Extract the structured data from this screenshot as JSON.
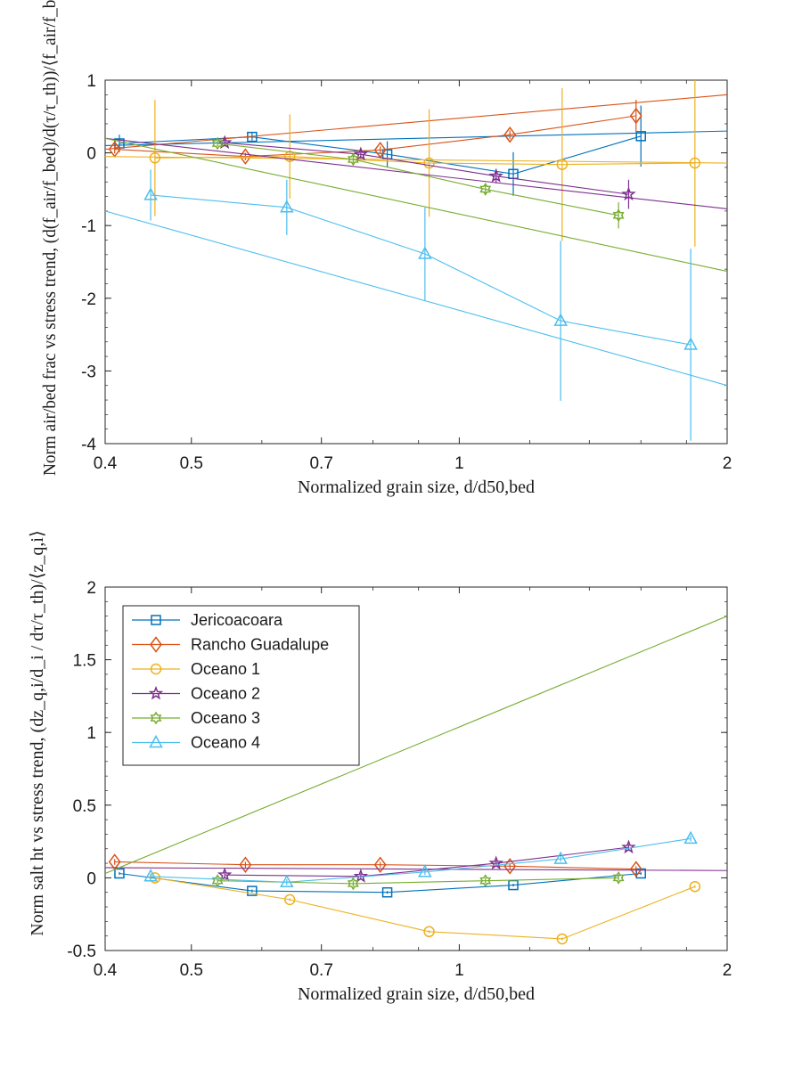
{
  "chart_data": [
    {
      "type": "line",
      "xscale": "log",
      "xlim": [
        0.4,
        2
      ],
      "ylim": [
        -4,
        1
      ],
      "xticks": [
        0.4,
        0.5,
        0.7,
        1,
        2
      ],
      "xtick_labels": [
        "0.4",
        "0.5",
        "0.7",
        "1",
        "2"
      ],
      "yticks": [
        1,
        0,
        -1,
        -2,
        -3,
        -4
      ],
      "ytick_labels": [
        "1",
        "0",
        "-1",
        "-2",
        "-3",
        "-4"
      ],
      "xlabel": "Normalized grain size, d/d50,bed",
      "ylabel": "Norm air/bed frac vs stress trend, (d(f_air/f_bed)/d(τ/τ_th))/⟨f_air/f_bed⟩",
      "legend": false,
      "series": [
        {
          "name": "Jericoacoara",
          "color": "#0072BD",
          "marker": "square",
          "x": [
            0.415,
            0.585,
            0.83,
            1.15,
            1.6
          ],
          "y": [
            0.13,
            0.22,
            -0.02,
            -0.29,
            0.23
          ],
          "err": [
            0.12,
            0.05,
            0.18,
            0.3,
            0.42
          ],
          "line_x": [
            0.4,
            2
          ],
          "line_y": [
            0.1,
            0.3
          ]
        },
        {
          "name": "Rancho Guadalupe",
          "color": "#D95319",
          "marker": "diamond",
          "x": [
            0.41,
            0.575,
            0.815,
            1.14,
            1.58
          ],
          "y": [
            0.05,
            -0.05,
            0.04,
            0.25,
            0.51
          ],
          "err": [
            0.06,
            0.05,
            0.05,
            0.06,
            0.22
          ],
          "line_x": [
            0.4,
            2
          ],
          "line_y": [
            0.05,
            0.8
          ]
        },
        {
          "name": "Oceano 1",
          "color": "#EDB120",
          "marker": "circle",
          "x": [
            0.455,
            0.645,
            0.925,
            1.305,
            1.84
          ],
          "y": [
            -0.07,
            -0.05,
            -0.14,
            -0.16,
            -0.14
          ],
          "err": [
            0.8,
            0.58,
            0.74,
            1.05,
            1.15
          ],
          "line_x": [
            0.4,
            2
          ],
          "line_y": [
            -0.05,
            -0.14
          ]
        },
        {
          "name": "Oceano 2",
          "color": "#7E2F8E",
          "marker": "star",
          "x": [
            0.545,
            0.775,
            1.1,
            1.55
          ],
          "y": [
            0.14,
            -0.02,
            -0.32,
            -0.57
          ],
          "err": [
            0.05,
            0.06,
            0.1,
            0.2
          ],
          "line_x": [
            0.4,
            2
          ],
          "line_y": [
            0.2,
            -0.77
          ]
        },
        {
          "name": "Oceano 3",
          "color": "#77AC30",
          "marker": "hexagram",
          "x": [
            0.535,
            0.76,
            1.07,
            1.51
          ],
          "y": [
            0.13,
            -0.09,
            -0.5,
            -0.86
          ],
          "err": [
            0.04,
            0.05,
            0.06,
            0.18
          ],
          "line_x": [
            0.4,
            2
          ],
          "line_y": [
            0.2,
            -1.63
          ]
        },
        {
          "name": "Oceano 4",
          "color": "#4DBEEE",
          "marker": "triangle",
          "x": [
            0.45,
            0.64,
            0.915,
            1.3,
            1.82
          ],
          "y": [
            -0.58,
            -0.75,
            -1.39,
            -2.31,
            -2.64
          ],
          "err": [
            0.35,
            0.38,
            0.64,
            1.1,
            1.32
          ],
          "line_x": [
            0.4,
            2
          ],
          "line_y": [
            -0.8,
            -3.2
          ]
        }
      ]
    },
    {
      "type": "line",
      "xscale": "log",
      "xlim": [
        0.4,
        2
      ],
      "ylim": [
        -0.5,
        2
      ],
      "xticks": [
        0.4,
        0.5,
        0.7,
        1,
        2
      ],
      "xtick_labels": [
        "0.4",
        "0.5",
        "0.7",
        "1",
        "2"
      ],
      "yticks": [
        2,
        1.5,
        1,
        0.5,
        0,
        -0.5
      ],
      "ytick_labels": [
        "2",
        "1.5",
        "1",
        "0.5",
        "0",
        "-0.5"
      ],
      "xlabel": "Normalized grain size, d/d50,bed",
      "ylabel": "Norm salt ht vs stress trend, (dz_q,i/d_i / dτ/τ_th)/⟨z_q,i⟩",
      "legend": true,
      "legend_position": "top-left",
      "series": [
        {
          "name": "Jericoacoara",
          "color": "#0072BD",
          "marker": "square",
          "x": [
            0.415,
            0.585,
            0.83,
            1.15,
            1.6
          ],
          "y": [
            0.03,
            -0.09,
            -0.1,
            -0.05,
            0.03
          ],
          "err": [
            0.01,
            0.01,
            0.01,
            0.01,
            0.01
          ]
        },
        {
          "name": "Rancho Guadalupe",
          "color": "#D95319",
          "marker": "diamond",
          "x": [
            0.41,
            0.575,
            0.815,
            1.14,
            1.58
          ],
          "y": [
            0.11,
            0.09,
            0.09,
            0.08,
            0.06
          ],
          "err": [
            0.02,
            0.02,
            0.02,
            0.02,
            0.02
          ]
        },
        {
          "name": "Oceano 1",
          "color": "#EDB120",
          "marker": "circle",
          "x": [
            0.455,
            0.645,
            0.925,
            1.305,
            1.84
          ],
          "y": [
            0.0,
            -0.15,
            -0.37,
            -0.42,
            -0.06
          ],
          "err": [
            0.01,
            0.01,
            0.01,
            0.01,
            0.01
          ]
        },
        {
          "name": "Oceano 2",
          "color": "#7E2F8E",
          "marker": "star",
          "x": [
            0.545,
            0.775,
            1.1,
            1.55
          ],
          "y": [
            0.02,
            0.01,
            0.1,
            0.21
          ],
          "err": [
            0.02,
            0.02,
            0.02,
            0.02
          ],
          "line_x": [
            0.4,
            2
          ],
          "line_y": [
            0.07,
            0.05
          ]
        },
        {
          "name": "Oceano 3",
          "color": "#77AC30",
          "marker": "hexagram",
          "x": [
            0.535,
            0.76,
            1.07,
            1.51
          ],
          "y": [
            -0.02,
            -0.04,
            -0.02,
            0.0
          ],
          "err": [
            0.02,
            0.02,
            0.02,
            0.02
          ],
          "line_x": [
            0.4,
            2
          ],
          "line_y": [
            0.03,
            1.8
          ]
        },
        {
          "name": "Oceano 4",
          "color": "#4DBEEE",
          "marker": "triangle",
          "x": [
            0.45,
            0.64,
            0.915,
            1.3,
            1.82
          ],
          "y": [
            0.01,
            -0.03,
            0.04,
            0.13,
            0.27
          ],
          "err": [
            0.02,
            0.02,
            0.02,
            0.02,
            0.02
          ]
        }
      ]
    }
  ]
}
